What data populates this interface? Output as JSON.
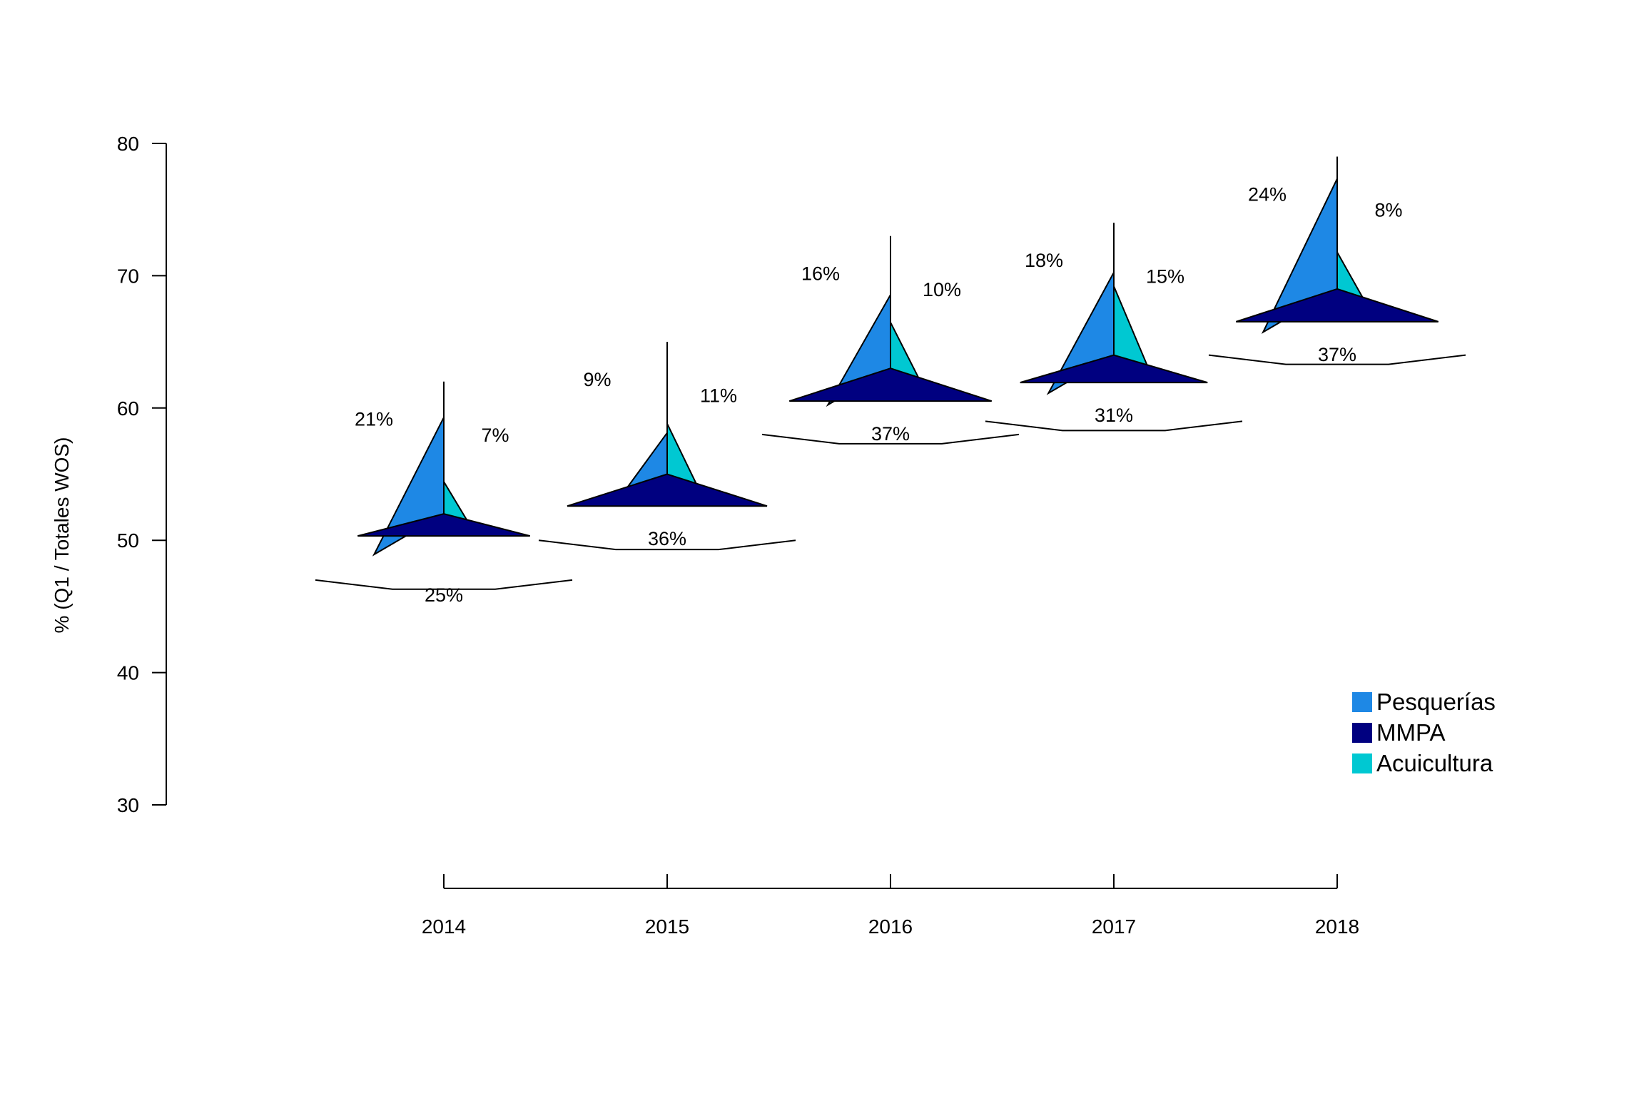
{
  "chart_data": {
    "type": "other",
    "ylabel": "%  (Q1 / Totales WOS)",
    "xlabel": "",
    "ylim": [
      30,
      80
    ],
    "yticks": [
      30,
      40,
      50,
      60,
      70,
      80
    ],
    "categories": [
      "2014",
      "2015",
      "2016",
      "2017",
      "2018"
    ],
    "points": [
      {
        "x": "2014",
        "y": 52,
        "top": 62,
        "bottom": 47,
        "labels": {
          "Pesquerías": "21%",
          "Acuicultura": "7%",
          "MMPA": "25%"
        }
      },
      {
        "x": "2015",
        "y": 55,
        "top": 65,
        "bottom": 50,
        "labels": {
          "Pesquerías": "9%",
          "Acuicultura": "11%",
          "MMPA": "36%"
        }
      },
      {
        "x": "2016",
        "y": 63,
        "top": 73,
        "bottom": 58,
        "labels": {
          "Pesquerías": "16%",
          "Acuicultura": "10%",
          "MMPA": "37%"
        }
      },
      {
        "x": "2017",
        "y": 64,
        "top": 74,
        "bottom": 59,
        "labels": {
          "Pesquerías": "18%",
          "Acuicultura": "15%",
          "MMPA": "31%"
        }
      },
      {
        "x": "2018",
        "y": 69,
        "top": 79,
        "bottom": 64,
        "labels": {
          "Pesquerías": "24%",
          "Acuicultura": "8%",
          "MMPA": "37%"
        }
      }
    ],
    "series": [
      {
        "name": "Pesquerías",
        "color": "#1e88e5",
        "values": [
          21,
          9,
          16,
          18,
          24
        ]
      },
      {
        "name": "MMPA",
        "color": "#000080",
        "values": [
          25,
          36,
          37,
          31,
          37
        ]
      },
      {
        "name": "Acuicultura",
        "color": "#00c8d2",
        "values": [
          7,
          11,
          10,
          15,
          8
        ]
      }
    ],
    "legend_position": "bottom-right",
    "grid": false
  }
}
